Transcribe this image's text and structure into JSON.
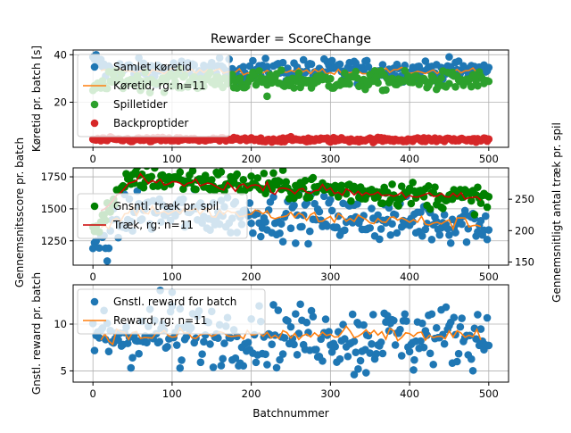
{
  "chart_data": [
    {
      "type": "scatter",
      "title": "Rewarder = ScoreChange",
      "xlabel": "",
      "ylabel": "Køretid pr. batch [s]",
      "xlim": [
        -25,
        525
      ],
      "ylim": [
        1,
        42
      ],
      "x_ticks": [
        0,
        100,
        200,
        300,
        400,
        500
      ],
      "y_ticks": [
        20,
        40
      ],
      "grid": true,
      "legend_position": "upper-left",
      "series": [
        {
          "name": "Samlet køretid",
          "kind": "points",
          "color": "#1f77b4",
          "level": 33.5,
          "noise": 2.3,
          "early": [
            39,
            38,
            40,
            37,
            36,
            38,
            35,
            36
          ]
        },
        {
          "name": "Køretid, rg: n=11",
          "kind": "line",
          "color": "#ff7f0e",
          "level": 33.0,
          "noise": 0.7
        },
        {
          "name": "Spilletider",
          "kind": "points",
          "color": "#2ca02c",
          "level": 29.0,
          "noise": 2.0,
          "early": [
            25,
            27,
            26,
            28,
            27,
            26,
            29,
            27
          ],
          "outliers": [
            [
              220,
              22.5
            ]
          ]
        },
        {
          "name": "Backproptider",
          "kind": "points",
          "color": "#d62728",
          "level": 4.2,
          "noise": 0.5
        }
      ]
    },
    {
      "type": "scatter",
      "title": "",
      "xlabel": "",
      "ylabel": "Gennemsnitsscore pr. batch",
      "y2label": "Gennemsnitligt antal træk pr. spil",
      "xlim": [
        -25,
        525
      ],
      "ylim": [
        1060,
        1820
      ],
      "y2lim": [
        145,
        300
      ],
      "x_ticks": [
        0,
        100,
        200,
        300,
        400,
        500
      ],
      "y_ticks": [
        1250,
        1500,
        1750
      ],
      "y2_ticks": [
        150,
        200,
        250
      ],
      "grid": true,
      "legend_position": "upper-left",
      "series": [
        {
          "name": "",
          "kind": "points",
          "axis": "left",
          "color": "#1f77b4",
          "start": 1180,
          "peak": 1480,
          "end": 1390,
          "noise": 85
        },
        {
          "name": "",
          "kind": "line",
          "axis": "left",
          "color": "#ff7f0e",
          "start": 1300,
          "peak": 1490,
          "end": 1380,
          "noise": 25
        },
        {
          "name": "Gnsntl. træk pr. spil",
          "kind": "points",
          "axis": "right",
          "color": "#008000",
          "start": 200,
          "peak": 285,
          "end": 250,
          "noise": 10
        },
        {
          "name": "Træk, rg: n=11",
          "kind": "line",
          "axis": "right",
          "color": "#cc0000",
          "start": 215,
          "peak": 279,
          "end": 250,
          "noise": 4
        }
      ]
    },
    {
      "type": "scatter",
      "title": "",
      "xlabel": "Batchnummer",
      "ylabel": "Gnstl. reward pr. batch",
      "xlim": [
        -25,
        525
      ],
      "ylim": [
        3.8,
        14.2
      ],
      "x_ticks": [
        0,
        100,
        200,
        300,
        400,
        500
      ],
      "y_ticks": [
        5,
        10
      ],
      "grid": true,
      "legend_position": "upper-left",
      "series": [
        {
          "name": "Gnstl. reward for batch",
          "kind": "points",
          "color": "#1f77b4",
          "level": 8.8,
          "noise": 1.6,
          "outliers": [
            [
              85,
              13.6
            ],
            [
              100,
              13.4
            ],
            [
              330,
              4.6
            ],
            [
              345,
              4.8
            ],
            [
              335,
              5.2
            ],
            [
              405,
              5.1
            ],
            [
              110,
              5.3
            ]
          ]
        },
        {
          "name": "Reward, rg: n=11",
          "kind": "line",
          "color": "#ff7f0e",
          "level": 8.8,
          "noise": 0.4
        }
      ]
    }
  ]
}
